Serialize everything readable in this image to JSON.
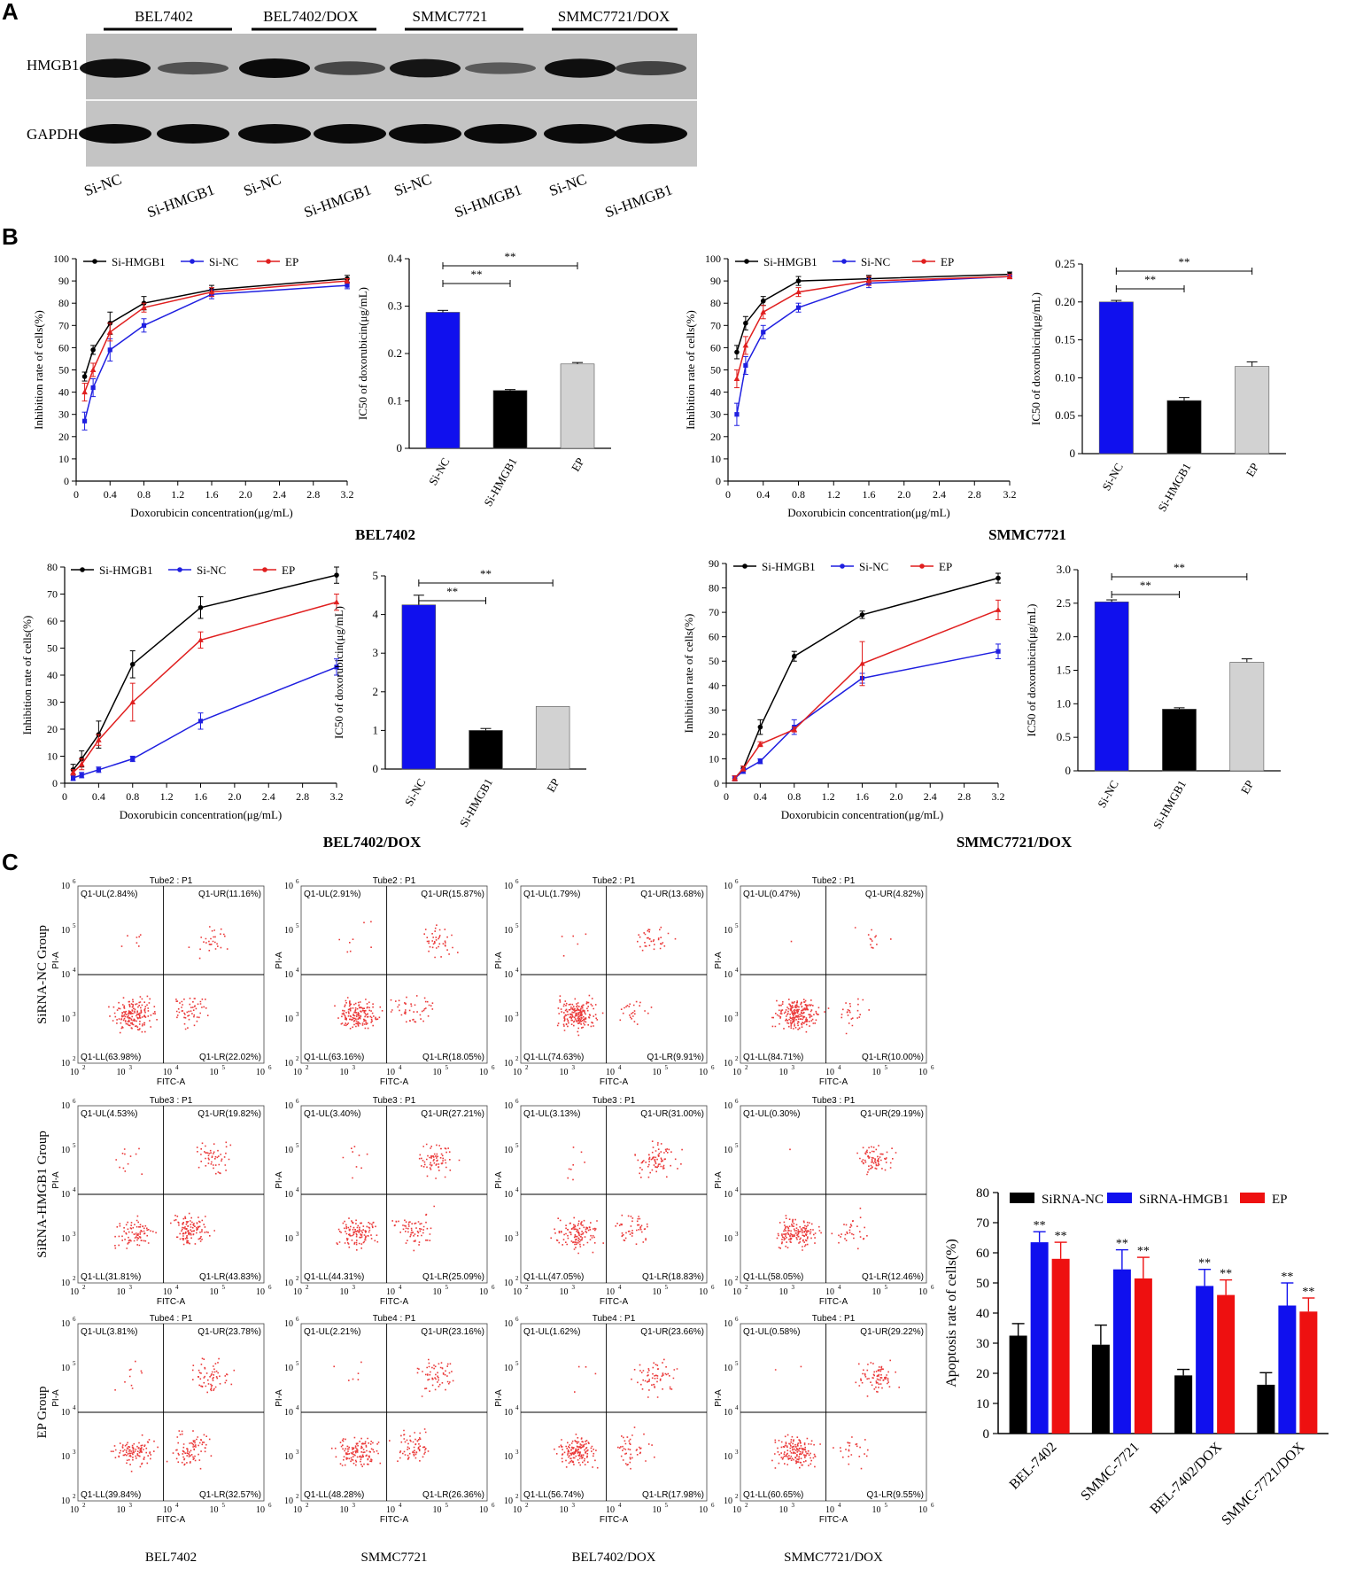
{
  "panel_labels": {
    "a": "A",
    "b": "B",
    "c": "C"
  },
  "western_blot": {
    "cell_lines": [
      "BEL7402",
      "BEL7402/DOX",
      "SMMC7721",
      "SMMC7721/DOX"
    ],
    "rows": [
      "HMGB1",
      "GAPDH"
    ],
    "lanes": [
      "Si-NC",
      "Si-HMGB1",
      "Si-NC",
      "Si-HMGB1",
      "Si-NC",
      "Si-HMGB1",
      "Si-NC",
      "Si-HMGB1"
    ]
  },
  "chart_data": [
    {
      "type": "line",
      "panel": "B",
      "group_label": "BEL7402",
      "xlabel": "Doxorubicin concentration(μg/mL)",
      "ylabel": "Inhibition rate of cells(%)",
      "x": [
        0.1,
        0.2,
        0.4,
        0.8,
        1.6,
        3.2
      ],
      "xlim": [
        0,
        3.2
      ],
      "xticks": [
        "0",
        "0.4",
        "0.8",
        "1.2",
        "1.6",
        "2.0",
        "2.4",
        "2.8",
        "3.2"
      ],
      "ylim": [
        0,
        100
      ],
      "yticks": [
        "0",
        "10",
        "20",
        "30",
        "40",
        "50",
        "60",
        "70",
        "80",
        "90",
        "100"
      ],
      "legend_pos": "top",
      "series": [
        {
          "name": "Si-HMGB1",
          "color": "#000000",
          "values": [
            47,
            59,
            71,
            80,
            86,
            91
          ],
          "errors": [
            2,
            2,
            5,
            3,
            2,
            1.5
          ]
        },
        {
          "name": "Si-NC",
          "color": "#1f1fe0",
          "values": [
            27,
            42,
            59,
            70,
            84,
            88
          ],
          "errors": [
            4,
            4,
            5,
            3,
            2,
            1.5
          ]
        },
        {
          "name": "EP",
          "color": "#e01f1f",
          "values": [
            40,
            50,
            67,
            78,
            85,
            90
          ],
          "errors": [
            4,
            3,
            4,
            2,
            2,
            1
          ]
        }
      ]
    },
    {
      "type": "bar",
      "panel": "B",
      "ylabel": "IC50 of doxorubicin(μg/mL)",
      "categories": [
        "Si-NC",
        "Si-HMGB1",
        "EP"
      ],
      "values": [
        0.287,
        0.122,
        0.178
      ],
      "errors": [
        0.004,
        0.002,
        0.003
      ],
      "colors": [
        "#1010ee",
        "#000000",
        "#d2d2d2"
      ],
      "ylim": [
        0,
        0.4
      ],
      "yticks": [
        "0",
        "0.1",
        "0.2",
        "0.3",
        "0.4"
      ],
      "significance": [
        "**",
        "**"
      ]
    },
    {
      "type": "line",
      "panel": "B",
      "group_label": "SMMC7721",
      "xlabel": "Doxorubicin concentration(μg/mL)",
      "ylabel": "Inhibition rate of cells(%)",
      "x": [
        0.1,
        0.2,
        0.4,
        0.8,
        1.6,
        3.2
      ],
      "xlim": [
        0,
        3.2
      ],
      "xticks": [
        "0",
        "0.4",
        "0.8",
        "1.2",
        "1.6",
        "2.0",
        "2.4",
        "2.8",
        "3.2"
      ],
      "ylim": [
        0,
        100
      ],
      "yticks": [
        "0",
        "10",
        "20",
        "30",
        "40",
        "50",
        "60",
        "70",
        "80",
        "90",
        "100"
      ],
      "legend_pos": "top",
      "series": [
        {
          "name": "Si-HMGB1",
          "color": "#000000",
          "values": [
            58,
            71,
            81,
            90,
            91,
            93
          ],
          "errors": [
            3,
            3,
            2,
            2,
            1.5,
            1
          ]
        },
        {
          "name": "Si-NC",
          "color": "#1f1fe0",
          "values": [
            30,
            52,
            67,
            78,
            89,
            92
          ],
          "errors": [
            5,
            4,
            3,
            2,
            2,
            1
          ]
        },
        {
          "name": "EP",
          "color": "#e01f1f",
          "values": [
            46,
            61,
            76,
            85,
            90,
            92
          ],
          "errors": [
            4,
            4,
            3,
            2,
            2,
            1
          ]
        }
      ]
    },
    {
      "type": "bar",
      "panel": "B",
      "ylabel": "IC50 of doxorubicin(μg/mL)",
      "categories": [
        "Si-NC",
        "Si-HMGB1",
        "EP"
      ],
      "values": [
        0.2,
        0.07,
        0.115
      ],
      "errors": [
        0.002,
        0.004,
        0.006
      ],
      "colors": [
        "#1010ee",
        "#000000",
        "#d2d2d2"
      ],
      "ylim": [
        0,
        0.25
      ],
      "yticks": [
        "0",
        "0.05",
        "0.10",
        "0.15",
        "0.20",
        "0.25"
      ],
      "significance": [
        "**",
        "**"
      ]
    },
    {
      "type": "line",
      "panel": "B",
      "group_label": "BEL7402/DOX",
      "xlabel": "Doxorubicin concentration(μg/mL)",
      "ylabel": "Inhibition rate of cells(%)",
      "x": [
        0.1,
        0.2,
        0.4,
        0.8,
        1.6,
        3.2
      ],
      "xlim": [
        0,
        3.2
      ],
      "xticks": [
        "0",
        "0.4",
        "0.8",
        "1.2",
        "1.6",
        "2.0",
        "2.4",
        "2.8",
        "3.2"
      ],
      "ylim": [
        0,
        80
      ],
      "yticks": [
        "0",
        "10",
        "20",
        "30",
        "40",
        "50",
        "60",
        "70",
        "80"
      ],
      "legend_pos": "top",
      "series": [
        {
          "name": "Si-HMGB1",
          "color": "#000000",
          "values": [
            5,
            9,
            18,
            44,
            65,
            77
          ],
          "errors": [
            2,
            3,
            5,
            5,
            4,
            3
          ]
        },
        {
          "name": "Si-NC",
          "color": "#1f1fe0",
          "values": [
            2,
            3,
            5,
            9,
            23,
            43
          ],
          "errors": [
            1,
            1,
            1,
            1,
            3,
            3
          ]
        },
        {
          "name": "EP",
          "color": "#e01f1f",
          "values": [
            4,
            7,
            16,
            30,
            53,
            67
          ],
          "errors": [
            1,
            2,
            2,
            7,
            3,
            3
          ]
        }
      ]
    },
    {
      "type": "bar",
      "panel": "B",
      "ylabel": "IC50 of doxorubicin(μg/mL)",
      "categories": [
        "Si-NC",
        "Si-HMGB1",
        "EP"
      ],
      "values": [
        4.25,
        1.0,
        1.62
      ],
      "errors": [
        0.25,
        0.05,
        0.0
      ],
      "colors": [
        "#1010ee",
        "#000000",
        "#d2d2d2"
      ],
      "ylim": [
        0,
        5
      ],
      "yticks": [
        "0",
        "1",
        "2",
        "3",
        "4",
        "5"
      ],
      "significance": [
        "**",
        "**"
      ]
    },
    {
      "type": "line",
      "panel": "B",
      "group_label": "SMMC7721/DOX",
      "xlabel": "Doxorubicin concentration(μg/mL)",
      "ylabel": "Inhibition rate of cells(%)",
      "x": [
        0.1,
        0.2,
        0.4,
        0.8,
        1.6,
        3.2
      ],
      "xlim": [
        0,
        3.2
      ],
      "xticks": [
        "0",
        "0.4",
        "0.8",
        "1.2",
        "1.6",
        "2.0",
        "2.4",
        "2.8",
        "3.2"
      ],
      "ylim": [
        0,
        90
      ],
      "yticks": [
        "0",
        "10",
        "20",
        "30",
        "40",
        "50",
        "60",
        "70",
        "80",
        "90"
      ],
      "legend_pos": "top",
      "series": [
        {
          "name": "Si-HMGB1",
          "color": "#000000",
          "values": [
            2,
            6,
            23,
            52,
            69,
            84
          ],
          "errors": [
            1,
            1,
            3,
            2,
            1.5,
            2
          ]
        },
        {
          "name": "Si-NC",
          "color": "#1f1fe0",
          "values": [
            2,
            5,
            9,
            23,
            43,
            54
          ],
          "errors": [
            1,
            1,
            1,
            3,
            2,
            3
          ]
        },
        {
          "name": "EP",
          "color": "#e01f1f",
          "values": [
            2,
            6,
            16,
            22,
            49,
            71
          ],
          "errors": [
            1,
            1,
            1,
            1,
            9,
            4
          ]
        }
      ]
    },
    {
      "type": "bar",
      "panel": "B",
      "ylabel": "IC50 of doxorubicin(μg/mL)",
      "categories": [
        "Si-NC",
        "Si-HMGB1",
        "EP"
      ],
      "values": [
        2.52,
        0.92,
        1.62
      ],
      "errors": [
        0.03,
        0.02,
        0.05
      ],
      "colors": [
        "#1010ee",
        "#000000",
        "#d2d2d2"
      ],
      "ylim": [
        0,
        3.0
      ],
      "yticks": [
        "0",
        "0.5",
        "1.0",
        "1.5",
        "2.0",
        "2.5",
        "3.0"
      ],
      "significance": [
        "**",
        "**"
      ]
    },
    {
      "type": "scatter",
      "panel": "C",
      "subtype": "flow-cytometry-grid",
      "row_labels": [
        "SiRNA-NC Group",
        "SiRNA-HMGB1 Group",
        "EP Group"
      ],
      "col_labels": [
        "BEL7402",
        "SMMC7721",
        "BEL7402/DOX",
        "SMMC7721/DOX"
      ],
      "tube_titles": [
        "Tube2 : P1",
        "Tube3 : P1",
        "Tube4 : P1"
      ],
      "xlabel": "FITC-A",
      "ylabel": "PI-A",
      "tick_base": "10",
      "tick_exps": [
        "2",
        "3",
        "4",
        "5",
        "6"
      ],
      "quadrants": [
        [
          [
            "Q1-UL(2.84%)",
            "Q1-UR(11.16%)",
            "Q1-LL(63.98%)",
            "Q1-LR(22.02%)"
          ],
          [
            "Q1-UL(2.91%)",
            "Q1-UR(15.87%)",
            "Q1-LL(63.16%)",
            "Q1-LR(18.05%)"
          ],
          [
            "Q1-UL(1.79%)",
            "Q1-UR(13.68%)",
            "Q1-LL(74.63%)",
            "Q1-LR(9.91%)"
          ],
          [
            "Q1-UL(0.47%)",
            "Q1-UR(4.82%)",
            "Q1-LL(84.71%)",
            "Q1-LR(10.00%)"
          ]
        ],
        [
          [
            "Q1-UL(4.53%)",
            "Q1-UR(19.82%)",
            "Q1-LL(31.81%)",
            "Q1-LR(43.83%)"
          ],
          [
            "Q1-UL(3.40%)",
            "Q1-UR(27.21%)",
            "Q1-LL(44.31%)",
            "Q1-LR(25.09%)"
          ],
          [
            "Q1-UL(3.13%)",
            "Q1-UR(31.00%)",
            "Q1-LL(47.05%)",
            "Q1-LR(18.83%)"
          ],
          [
            "Q1-UL(0.30%)",
            "Q1-UR(29.19%)",
            "Q1-LL(58.05%)",
            "Q1-LR(12.46%)"
          ]
        ],
        [
          [
            "Q1-UL(3.81%)",
            "Q1-UR(23.78%)",
            "Q1-LL(39.84%)",
            "Q1-LR(32.57%)"
          ],
          [
            "Q1-UL(2.21%)",
            "Q1-UR(23.16%)",
            "Q1-LL(48.28%)",
            "Q1-LR(26.36%)"
          ],
          [
            "Q1-UL(1.62%)",
            "Q1-UR(23.66%)",
            "Q1-LL(56.74%)",
            "Q1-LR(17.98%)"
          ],
          [
            "Q1-UL(0.58%)",
            "Q1-UR(29.22%)",
            "Q1-LL(60.65%)",
            "Q1-LR(9.55%)"
          ]
        ]
      ]
    },
    {
      "type": "bar",
      "panel": "C",
      "grouped": true,
      "ylabel": "Apoptosis rate of cells(%)",
      "categories": [
        "BEL-7402",
        "SMMC-7721",
        "BEL-7402/DOX",
        "SMMC-7721/DOX"
      ],
      "ylim": [
        0,
        80
      ],
      "yticks": [
        "0",
        "10",
        "20",
        "30",
        "40",
        "50",
        "60",
        "70",
        "80"
      ],
      "legend_pos": "top",
      "series": [
        {
          "name": "SiRNA-NC",
          "color": "#000000",
          "values": [
            32.5,
            29.5,
            19.3,
            16.2
          ],
          "errors": [
            4,
            6.5,
            2,
            4
          ],
          "marks": [
            "",
            "",
            "",
            ""
          ]
        },
        {
          "name": "SiRNA-HMGB1",
          "color": "#1010ee",
          "values": [
            63.5,
            54.5,
            49,
            42.5
          ],
          "errors": [
            3.5,
            6.5,
            5.5,
            7.5
          ],
          "marks": [
            "**",
            "**",
            "**",
            "**"
          ]
        },
        {
          "name": "EP",
          "color": "#ee1010",
          "values": [
            58,
            51.5,
            46,
            40.5
          ],
          "errors": [
            5.5,
            7,
            5,
            4.5
          ],
          "marks": [
            "**",
            "**",
            "**",
            "**"
          ]
        }
      ]
    }
  ]
}
